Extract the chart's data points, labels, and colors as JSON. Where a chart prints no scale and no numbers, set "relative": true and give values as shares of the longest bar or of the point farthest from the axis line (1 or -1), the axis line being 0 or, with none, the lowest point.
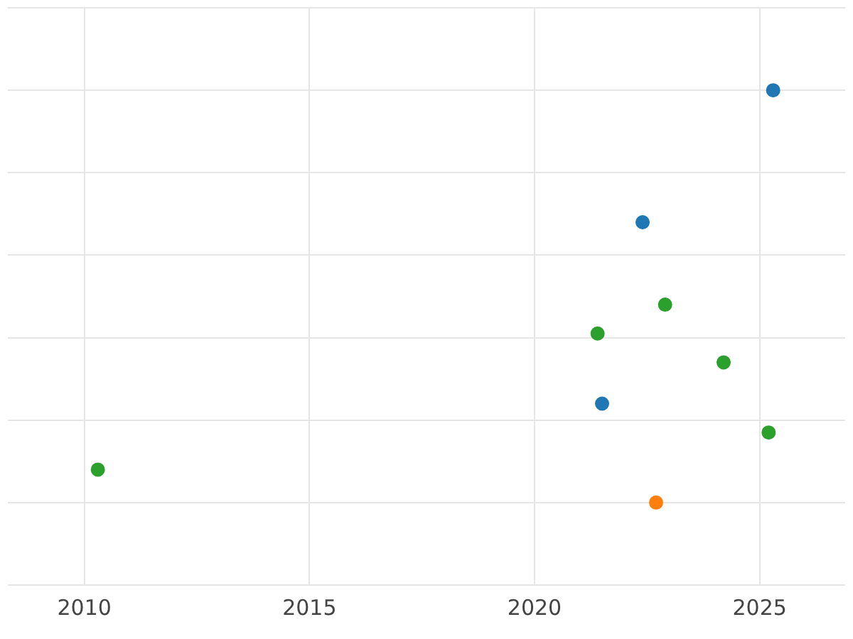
{
  "chart_data": {
    "type": "scatter",
    "relative": true,
    "grid": true,
    "legend": false,
    "marker": "circle",
    "xlim": [
      2008.3,
      2026.9
    ],
    "xticks": [
      2010,
      2015,
      2020,
      2025
    ],
    "series": [
      {
        "color": "#1f77b4",
        "x": [
          2025.3,
          2022.4,
          2021.5
        ],
        "values": [
          1,
          0.68,
          0.24
        ]
      },
      {
        "color": "#ff7f0e",
        "x": [
          2022.7
        ],
        "values": [
          0
        ]
      },
      {
        "color": "#2ca02c",
        "x": [
          2022.9,
          2021.4,
          2024.2,
          2025.2,
          2010.3
        ],
        "values": [
          0.48,
          0.41,
          0.34,
          0.17,
          0.08
        ]
      }
    ]
  }
}
